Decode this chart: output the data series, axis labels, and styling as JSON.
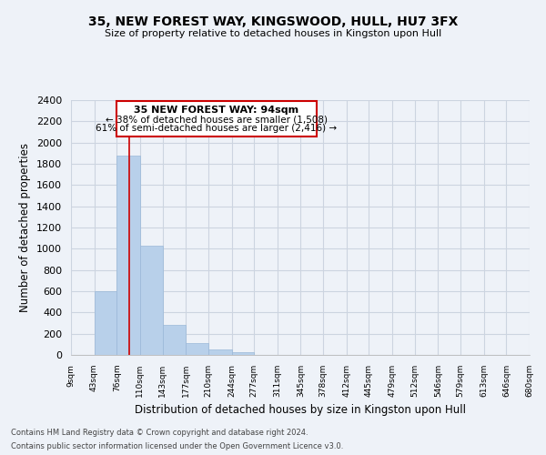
{
  "title": "35, NEW FOREST WAY, KINGSWOOD, HULL, HU7 3FX",
  "subtitle": "Size of property relative to detached houses in Kingston upon Hull",
  "xlabel": "Distribution of detached houses by size in Kingston upon Hull",
  "ylabel": "Number of detached properties",
  "bar_edges": [
    9,
    43,
    76,
    110,
    143,
    177,
    210,
    244,
    277,
    311,
    345,
    378,
    412,
    445,
    479,
    512,
    546,
    579,
    613,
    646,
    680
  ],
  "bar_heights": [
    0,
    600,
    1880,
    1030,
    280,
    115,
    50,
    25,
    0,
    0,
    0,
    0,
    0,
    0,
    0,
    0,
    0,
    0,
    0,
    0
  ],
  "bar_color": "#b8d0ea",
  "bar_edge_color": "#9ab8d8",
  "property_line_x": 94,
  "property_line_color": "#cc0000",
  "annotation_title": "35 NEW FOREST WAY: 94sqm",
  "annotation_line1": "← 38% of detached houses are smaller (1,508)",
  "annotation_line2": "61% of semi-detached houses are larger (2,416) →",
  "annotation_box_color": "#ffffff",
  "annotation_box_edge": "#cc0000",
  "ylim": [
    0,
    2400
  ],
  "yticks": [
    0,
    200,
    400,
    600,
    800,
    1000,
    1200,
    1400,
    1600,
    1800,
    2000,
    2200,
    2400
  ],
  "tick_labels": [
    "9sqm",
    "43sqm",
    "76sqm",
    "110sqm",
    "143sqm",
    "177sqm",
    "210sqm",
    "244sqm",
    "277sqm",
    "311sqm",
    "345sqm",
    "378sqm",
    "412sqm",
    "445sqm",
    "479sqm",
    "512sqm",
    "546sqm",
    "579sqm",
    "613sqm",
    "646sqm",
    "680sqm"
  ],
  "footer_line1": "Contains HM Land Registry data © Crown copyright and database right 2024.",
  "footer_line2": "Contains public sector information licensed under the Open Government Licence v3.0.",
  "grid_color": "#ccd4e0",
  "background_color": "#eef2f8"
}
